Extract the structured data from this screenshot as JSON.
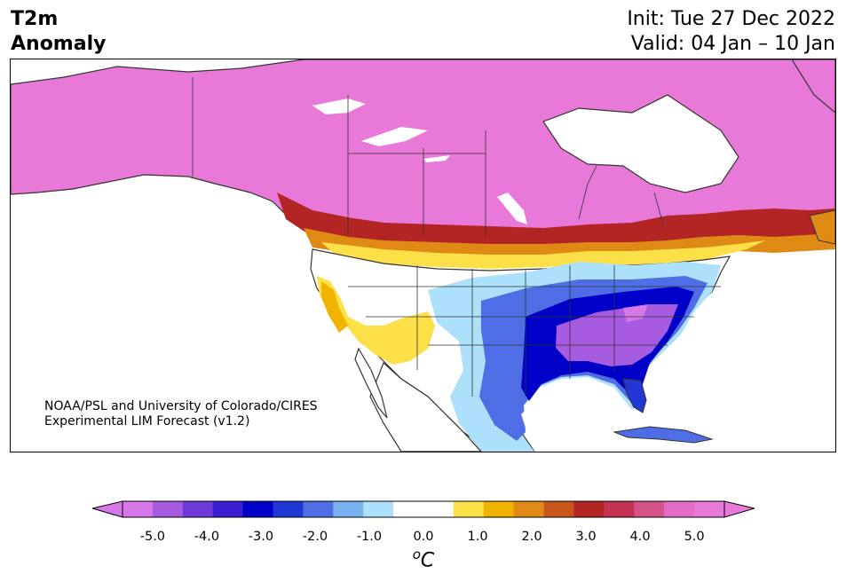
{
  "header": {
    "title_line1": "T2m",
    "title_line2": "Anomaly",
    "init": "Init: Tue 27 Dec 2022",
    "valid": "Valid: 04 Jan – 10 Jan"
  },
  "credit": {
    "line1": "NOAA/PSL and University of Colorado/CIRES",
    "line2": "Experimental LIM Forecast (v1.2)"
  },
  "colorbar": {
    "unit_base": "C",
    "unit_sup": "o",
    "colors": [
      "#d778e8",
      "#a65be0",
      "#6f3ad8",
      "#3a1fd0",
      "#0000c8",
      "#2238d6",
      "#4f6ee6",
      "#78b2f0",
      "#ade0fa",
      "#ffffff",
      "#ffffff",
      "#fde047",
      "#f0b400",
      "#df8a15",
      "#c8561a",
      "#b32424",
      "#c23252",
      "#d65387",
      "#e36cc4",
      "#e979d8"
    ],
    "extend_low": "#d778e8",
    "extend_high": "#e979d8",
    "ticks": [
      "-5.0",
      "-4.0",
      "-3.0",
      "-2.0",
      "-1.0",
      "0.0",
      "1.0",
      "2.0",
      "3.0",
      "4.0",
      "5.0"
    ]
  },
  "map": {
    "region": "North America",
    "ocean_color": "#ffffff",
    "coastline_color": "#333333"
  }
}
